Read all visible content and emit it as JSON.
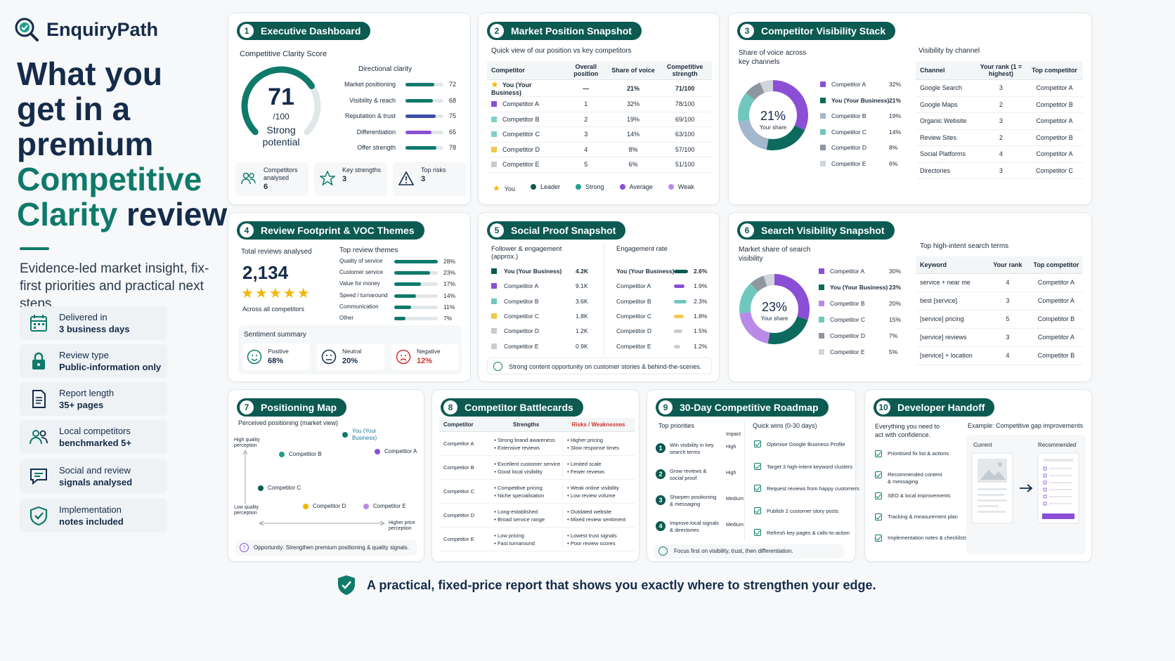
{
  "brand": {
    "name": "EnquiryPath"
  },
  "hero": {
    "l1": "What you",
    "l2": "get in a",
    "l3": "premium",
    "l4": "Competitive",
    "l5a": "Clarity",
    "l5b": "review"
  },
  "subtitle": "Evidence-led market insight, fix-first priorities and practical next steps.",
  "features": [
    {
      "a": "Delivered in",
      "b": "3 business days",
      "icon": "calendar-icon"
    },
    {
      "a": "Review type",
      "b": "Public-information only",
      "icon": "lock-icon"
    },
    {
      "a": "Report length",
      "b": "35+ pages",
      "icon": "document-icon"
    },
    {
      "a": "Local competitors",
      "b": "benchmarked 5+",
      "icon": "people-icon"
    },
    {
      "a": "Social and review",
      "b": "signals analysed",
      "icon": "chat-icon"
    },
    {
      "a": "Implementation",
      "b": "notes included",
      "icon": "shield-check-icon"
    }
  ],
  "c1": {
    "num": "1",
    "title": "Executive Dashboard",
    "score_label": "Competitive Clarity Score",
    "score": "71",
    "score_of": "/100",
    "score_fraction": 0.71,
    "status1": "Strong",
    "status2": "potential",
    "dir_title": "Directional clarity",
    "rows": [
      {
        "label": "Market positioning",
        "value": "72",
        "v": 72,
        "color": "#0f7a6a"
      },
      {
        "label": "Visibility & reach",
        "value": "68",
        "v": 68,
        "color": "#0f7a6a"
      },
      {
        "label": "Reputation & trust",
        "value": "75",
        "v": 75,
        "color": "#3b4fa8"
      },
      {
        "label": "Differentiation",
        "value": "65",
        "v": 65,
        "color": "#8a4fd6"
      },
      {
        "label": "Offer strength",
        "value": "78",
        "v": 78,
        "color": "#0f7a6a"
      }
    ],
    "stats": [
      {
        "a": "Competitors",
        "b": "analysed",
        "v": "6"
      },
      {
        "a": "Key strengths",
        "b": "",
        "v": "3"
      },
      {
        "a": "Top risks",
        "b": "",
        "v": "3"
      }
    ]
  },
  "c2": {
    "num": "2",
    "title": "Market Position Snapshot",
    "subtitle": "Quick view of our position vs key competitors",
    "headers": [
      "Competitor",
      "Overall position",
      "Share of voice",
      "Competitive strength"
    ],
    "rows": [
      [
        "You (Your Business)",
        "—",
        "21%",
        "71/100"
      ],
      [
        "Competitor A",
        "1",
        "32%",
        "78/100"
      ],
      [
        "Competitor B",
        "2",
        "19%",
        "69/100"
      ],
      [
        "Competitor C",
        "3",
        "14%",
        "63/100"
      ],
      [
        "Competitor D",
        "4",
        "8%",
        "57/100"
      ],
      [
        "Competitor E",
        "5",
        "6%",
        "51/100"
      ]
    ],
    "row_colors": [
      "#f2b705",
      "#8a4fd6",
      "#7fd1c7",
      "#7fd1c7",
      "#f2c94c",
      "#c8ccd0"
    ],
    "legend": [
      "You",
      "Leader",
      "Strong",
      "Average",
      "Weak"
    ],
    "legend_colors": [
      "#f2b705",
      "#0c5a52",
      "#1f9e8c",
      "#8a4fd6",
      "#b98ae8"
    ]
  },
  "c3": {
    "num": "3",
    "title": "Competitor Visibility Stack",
    "donut_title1": "Share of voice across",
    "donut_title2": "key channels",
    "center": "21%",
    "center_sub": "Your share",
    "legend": [
      {
        "label": "Competitor A",
        "value": "32%",
        "v": 32,
        "color": "#8a4fd6"
      },
      {
        "label": "You (Your Business)",
        "value": "21%",
        "v": 21,
        "color": "#0c6b5e"
      },
      {
        "label": "Competitor B",
        "value": "19%",
        "v": 19,
        "color": "#a3b8cc"
      },
      {
        "label": "Competitor C",
        "value": "14%",
        "v": 14,
        "color": "#6fc7bd"
      },
      {
        "label": "Competitor D",
        "value": "8%",
        "v": 8,
        "color": "#8e979f"
      },
      {
        "label": "Competitor E",
        "value": "6%",
        "v": 6,
        "color": "#cfd5da"
      }
    ],
    "channel_title": "Visibility by channel",
    "headers": [
      "Channel",
      "Your rank (1 = highest)",
      "Top competitor"
    ],
    "rows": [
      [
        "Google Search",
        "3",
        "Competitor A"
      ],
      [
        "Google Maps",
        "2",
        "Competitor B"
      ],
      [
        "Organic Website",
        "3",
        "Competitor A"
      ],
      [
        "Review Sites",
        "2",
        "Competitor B"
      ],
      [
        "Social Platforms",
        "4",
        "Competitor A"
      ],
      [
        "Directories",
        "3",
        "Competitor C"
      ]
    ]
  },
  "c4": {
    "num": "4",
    "title": "Review Footprint & VOC Themes",
    "total_label": "Total reviews analysed",
    "total": "2,134",
    "stars": "★★★★★",
    "across": "Across all competitors",
    "themes_title": "Top review themes",
    "themes": [
      {
        "label": "Quality of service",
        "value": "28%",
        "v": 28
      },
      {
        "label": "Customer service",
        "value": "23%",
        "v": 23
      },
      {
        "label": "Value for money",
        "value": "17%",
        "v": 17
      },
      {
        "label": "Speed / turnaround",
        "value": "14%",
        "v": 14
      },
      {
        "label": "Communication",
        "value": "11%",
        "v": 11
      },
      {
        "label": "Other",
        "value": "7%",
        "v": 7
      }
    ],
    "sent_title": "Sentiment summary",
    "sentiments": [
      {
        "label": "Positive",
        "value": "68%"
      },
      {
        "label": "Neutral",
        "value": "20%"
      },
      {
        "label": "Negative",
        "value": "12%"
      }
    ]
  },
  "c5": {
    "num": "5",
    "title": "Social Proof Snapshot",
    "fol_title1": "Follower & engagement",
    "fol_title2": "(approx.)",
    "eng_title": "Engagement rate",
    "rows": [
      {
        "label": "You (Your Business)",
        "f": "4.2K",
        "e": "2.6%",
        "v": 2.6,
        "color": "#0c5a52"
      },
      {
        "label": "Competitor A",
        "f": "9.1K",
        "e": "1.9%",
        "v": 1.9,
        "color": "#8a4fd6"
      },
      {
        "label": "Competitor B",
        "f": "3.6K",
        "e": "2.3%",
        "v": 2.3,
        "color": "#6fc7bd"
      },
      {
        "label": "Competitor C",
        "f": "1.8K",
        "e": "1.8%",
        "v": 1.8,
        "color": "#f2c94c"
      },
      {
        "label": "Competitor D",
        "f": "1.2K",
        "e": "1.5%",
        "v": 1.5,
        "color": "#c8ccd0"
      },
      {
        "label": "Competitor E",
        "f": "0.9K",
        "e": "1.2%",
        "v": 1.2,
        "color": "#c8ccd0"
      }
    ],
    "note": "Strong content opportunity on customer stories & behind-the-scenes."
  },
  "c6": {
    "num": "6",
    "title": "Search Visibility Snapshot",
    "donut_title1": "Market share of search",
    "donut_title2": "visibility",
    "center": "23%",
    "center_sub": "Your share",
    "legend": [
      {
        "label": "Competitor A",
        "value": "30%",
        "v": 30,
        "color": "#8a4fd6"
      },
      {
        "label": "You (Your Business)",
        "value": "23%",
        "v": 23,
        "color": "#0c6b5e"
      },
      {
        "label": "Competitor B",
        "value": "20%",
        "v": 20,
        "color": "#b98ae8"
      },
      {
        "label": "Competitor C",
        "value": "15%",
        "v": 15,
        "color": "#6fc7bd"
      },
      {
        "label": "Competitor D",
        "value": "7%",
        "v": 7,
        "color": "#8e979f"
      },
      {
        "label": "Competitor E",
        "value": "5%",
        "v": 5,
        "color": "#cfd5da"
      }
    ],
    "terms_title": "Top high-intent search terms",
    "headers": [
      "Keyword",
      "Your rank",
      "Top competitor"
    ],
    "rows": [
      [
        "service + near me",
        "4",
        "Competitor A"
      ],
      [
        "best [service]",
        "3",
        "Competitor A"
      ],
      [
        "[service] pricing",
        "5",
        "Competitor B"
      ],
      [
        "[service] reviews",
        "3",
        "Competitor A"
      ],
      [
        "[service] + location",
        "4",
        "Competitor B"
      ]
    ]
  },
  "c7": {
    "num": "7",
    "title": "Positioning Map",
    "subtitle": "Perceived positioning (market view)",
    "y_high1": "High quality",
    "y_high2": "perception",
    "y_low1": "Low quality",
    "y_low2": "perception",
    "x_high1": "Higher price",
    "x_high2": "perception",
    "points": [
      {
        "label": "You (Your",
        "label2": "Business)",
        "color": "#0f7a6a"
      },
      {
        "label": "Competitor A",
        "label2": "",
        "color": "#8a4fd6"
      },
      {
        "label": "Competitor B",
        "label2": "",
        "color": "#1f9e8c"
      },
      {
        "label": "Competitor C",
        "label2": "",
        "color": "#0c5a52"
      },
      {
        "label": "Competitor D",
        "label2": "",
        "color": "#f2b705"
      },
      {
        "label": "Competitor E",
        "label2": "",
        "color": "#b98ae8"
      }
    ],
    "note": "Opportunity: Strengthen premium positioning & quality signals."
  },
  "c8": {
    "num": "8",
    "title": "Competitor Battlecards",
    "headers": [
      "Competitor",
      "Strengths",
      "Risks / Weaknesses"
    ],
    "rows": [
      {
        "c": "Competitor A",
        "s": [
          "Strong brand awareness",
          "Extensive reviews"
        ],
        "w": [
          "Higher pricing",
          "Slow response times"
        ]
      },
      {
        "c": "Competitor B",
        "s": [
          "Excellent customer service",
          "Good local visibility"
        ],
        "w": [
          "Limited scale",
          "Fewer reviews"
        ]
      },
      {
        "c": "Competitor C",
        "s": [
          "Competitive pricing",
          "Niche specialisation"
        ],
        "w": [
          "Weak online visibility",
          "Low review volume"
        ]
      },
      {
        "c": "Competitor D",
        "s": [
          "Long-established",
          "Broad service range"
        ],
        "w": [
          "Outdated website",
          "Mixed review sentiment"
        ]
      },
      {
        "c": "Competitor E",
        "s": [
          "Low pricing",
          "Fast turnaround"
        ],
        "w": [
          "Lowest trust signals",
          "Poor review scores"
        ]
      }
    ]
  },
  "c9": {
    "num": "9",
    "title": "30-Day Competitive Roadmap",
    "prio_title": "Top priorities",
    "impact": "Impact",
    "qw_title": "Quick wins (0-30 days)",
    "prios": [
      {
        "n": "1",
        "a": "Win visibility in key",
        "b": "search terms",
        "i": "High"
      },
      {
        "n": "2",
        "a": "Grow reviews &",
        "b": "social proof",
        "i": "High"
      },
      {
        "n": "3",
        "a": "Sharpen positioning",
        "b": "& messaging",
        "i": "Medium"
      },
      {
        "n": "4",
        "a": "Improve local signals",
        "b": "& directories",
        "i": "Medium"
      }
    ],
    "wins": [
      "Optimise Google Business Profile",
      "Target 3 high-intent keyword clusters",
      "Request reviews from happy customers",
      "Publish 2 customer story posts",
      "Refresh key pages & calls-to-action"
    ],
    "note": "Focus first on visibility, trust, then differentiation."
  },
  "c10": {
    "num": "10",
    "title": "Developer Handoff",
    "intro1": "Everything you need to",
    "intro2": "act with confidence.",
    "example": "Example: Competitive gap improvements",
    "current": "Current",
    "recommended": "Recommended",
    "items": [
      {
        "a": "Prioritised fix list & actions",
        "b": ""
      },
      {
        "a": "Recommended content",
        "b": "& messaging"
      },
      {
        "a": "SEO & local improvements",
        "b": ""
      },
      {
        "a": "Tracking & measurement plan",
        "b": ""
      },
      {
        "a": "Implementation notes & checklists",
        "b": ""
      }
    ]
  },
  "footer": "A practical, fixed-price report that shows you exactly where to strengthen your edge."
}
